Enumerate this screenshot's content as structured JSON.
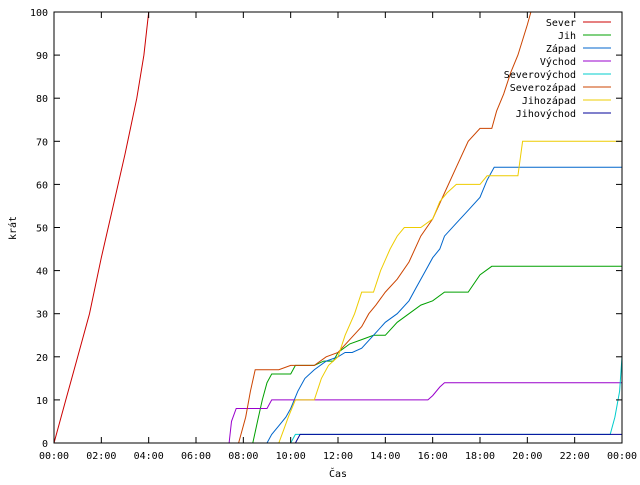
{
  "chart_data": {
    "type": "line",
    "title": "",
    "xlabel": "Čas",
    "ylabel": "krát",
    "xlim": [
      0,
      24
    ],
    "ylim": [
      0,
      100
    ],
    "grid": false,
    "legend_position": "top-right",
    "x_ticks": [
      {
        "v": 0,
        "label": "00:00"
      },
      {
        "v": 2,
        "label": "02:00"
      },
      {
        "v": 4,
        "label": "04:00"
      },
      {
        "v": 6,
        "label": "06:00"
      },
      {
        "v": 8,
        "label": "08:00"
      },
      {
        "v": 10,
        "label": "10:00"
      },
      {
        "v": 12,
        "label": "12:00"
      },
      {
        "v": 14,
        "label": "14:00"
      },
      {
        "v": 16,
        "label": "16:00"
      },
      {
        "v": 18,
        "label": "18:00"
      },
      {
        "v": 20,
        "label": "20:00"
      },
      {
        "v": 22,
        "label": "22:00"
      },
      {
        "v": 24,
        "label": "00:00"
      }
    ],
    "y_ticks": [
      {
        "v": 0,
        "label": "0"
      },
      {
        "v": 10,
        "label": "10"
      },
      {
        "v": 20,
        "label": "20"
      },
      {
        "v": 30,
        "label": "30"
      },
      {
        "v": 40,
        "label": "40"
      },
      {
        "v": 50,
        "label": "50"
      },
      {
        "v": 60,
        "label": "60"
      },
      {
        "v": 70,
        "label": "70"
      },
      {
        "v": 80,
        "label": "80"
      },
      {
        "v": 90,
        "label": "90"
      },
      {
        "v": 100,
        "label": "100"
      }
    ],
    "series": [
      {
        "name": "Sever",
        "color": "#cc0000",
        "points": [
          [
            0,
            0
          ],
          [
            0.5,
            10
          ],
          [
            1,
            20
          ],
          [
            1.5,
            30
          ],
          [
            2,
            43
          ],
          [
            2.5,
            55
          ],
          [
            3,
            67
          ],
          [
            3.5,
            80
          ],
          [
            3.8,
            90
          ],
          [
            4.0,
            100
          ],
          [
            4.05,
            101
          ]
        ]
      },
      {
        "name": "Jih",
        "color": "#00a000",
        "points": [
          [
            0,
            0
          ],
          [
            8.4,
            0
          ],
          [
            8.6,
            5
          ],
          [
            8.8,
            10
          ],
          [
            9.0,
            14
          ],
          [
            9.2,
            16
          ],
          [
            10.0,
            16
          ],
          [
            10.2,
            18
          ],
          [
            11.0,
            18
          ],
          [
            11.4,
            19
          ],
          [
            11.8,
            19
          ],
          [
            12.0,
            21
          ],
          [
            12.5,
            23
          ],
          [
            13.0,
            24
          ],
          [
            13.5,
            25
          ],
          [
            14.0,
            25
          ],
          [
            14.5,
            28
          ],
          [
            15.0,
            30
          ],
          [
            15.5,
            32
          ],
          [
            16.0,
            33
          ],
          [
            16.5,
            35
          ],
          [
            17.5,
            35
          ],
          [
            18.0,
            39
          ],
          [
            18.5,
            41
          ],
          [
            24,
            41
          ]
        ]
      },
      {
        "name": "Západ",
        "color": "#0066cc",
        "points": [
          [
            0,
            0
          ],
          [
            9.0,
            0
          ],
          [
            9.2,
            2
          ],
          [
            9.5,
            4
          ],
          [
            9.8,
            6
          ],
          [
            10.0,
            8
          ],
          [
            10.3,
            12
          ],
          [
            10.6,
            15
          ],
          [
            11.0,
            17
          ],
          [
            11.5,
            19
          ],
          [
            12.0,
            20
          ],
          [
            12.3,
            21
          ],
          [
            12.6,
            21
          ],
          [
            13.0,
            22
          ],
          [
            13.5,
            25
          ],
          [
            14.0,
            28
          ],
          [
            14.5,
            30
          ],
          [
            15.0,
            33
          ],
          [
            15.3,
            36
          ],
          [
            15.7,
            40
          ],
          [
            16.0,
            43
          ],
          [
            16.3,
            45
          ],
          [
            16.5,
            48
          ],
          [
            17.0,
            51
          ],
          [
            17.5,
            54
          ],
          [
            18.0,
            57
          ],
          [
            18.3,
            61
          ],
          [
            18.6,
            64
          ],
          [
            24,
            64
          ]
        ]
      },
      {
        "name": "Východ",
        "color": "#9900cc",
        "points": [
          [
            0,
            0
          ],
          [
            7.4,
            0
          ],
          [
            7.5,
            5
          ],
          [
            7.7,
            8
          ],
          [
            8.5,
            8
          ],
          [
            9.0,
            8
          ],
          [
            9.2,
            10
          ],
          [
            15.8,
            10
          ],
          [
            16.0,
            11
          ],
          [
            16.3,
            13
          ],
          [
            16.5,
            14
          ],
          [
            24,
            14
          ]
        ]
      },
      {
        "name": "Severovýchod",
        "color": "#00cccc",
        "points": [
          [
            0,
            0
          ],
          [
            10.0,
            0
          ],
          [
            10.2,
            2
          ],
          [
            23.5,
            2
          ],
          [
            23.7,
            6
          ],
          [
            23.9,
            12
          ],
          [
            24,
            20
          ]
        ]
      },
      {
        "name": "Severozápad",
        "color": "#cc4400",
        "points": [
          [
            0,
            0
          ],
          [
            7.8,
            0
          ],
          [
            8.1,
            6
          ],
          [
            8.3,
            12
          ],
          [
            8.5,
            17
          ],
          [
            9.5,
            17
          ],
          [
            10.0,
            18
          ],
          [
            11.0,
            18
          ],
          [
            11.5,
            20
          ],
          [
            12.0,
            21
          ],
          [
            12.5,
            24
          ],
          [
            13.0,
            27
          ],
          [
            13.3,
            30
          ],
          [
            13.6,
            32
          ],
          [
            14.0,
            35
          ],
          [
            14.5,
            38
          ],
          [
            15.0,
            42
          ],
          [
            15.5,
            48
          ],
          [
            16.0,
            52
          ],
          [
            16.5,
            58
          ],
          [
            17.0,
            64
          ],
          [
            17.5,
            70
          ],
          [
            18.0,
            73
          ],
          [
            18.5,
            73
          ],
          [
            18.7,
            77
          ],
          [
            19.0,
            81
          ],
          [
            19.3,
            86
          ],
          [
            19.6,
            90
          ],
          [
            20.0,
            97
          ],
          [
            20.2,
            101
          ]
        ]
      },
      {
        "name": "Jihozápad",
        "color": "#eecc00",
        "points": [
          [
            0,
            0
          ],
          [
            9.5,
            0
          ],
          [
            9.7,
            3
          ],
          [
            9.9,
            6
          ],
          [
            10.2,
            10
          ],
          [
            11.0,
            10
          ],
          [
            11.3,
            15
          ],
          [
            11.6,
            18
          ],
          [
            12.0,
            20
          ],
          [
            12.3,
            25
          ],
          [
            12.7,
            30
          ],
          [
            13.0,
            35
          ],
          [
            13.5,
            35
          ],
          [
            13.8,
            40
          ],
          [
            14.2,
            45
          ],
          [
            14.5,
            48
          ],
          [
            14.8,
            50
          ],
          [
            15.5,
            50
          ],
          [
            16.0,
            52
          ],
          [
            16.3,
            56
          ],
          [
            16.6,
            58
          ],
          [
            17.0,
            60
          ],
          [
            18.0,
            60
          ],
          [
            18.3,
            62
          ],
          [
            19.0,
            62
          ],
          [
            19.6,
            62
          ],
          [
            19.8,
            70
          ],
          [
            24,
            70
          ]
        ]
      },
      {
        "name": "Jihovýchod",
        "color": "#000099",
        "points": [
          [
            0,
            0
          ],
          [
            10.2,
            0
          ],
          [
            10.4,
            2
          ],
          [
            24,
            2
          ]
        ]
      }
    ]
  }
}
